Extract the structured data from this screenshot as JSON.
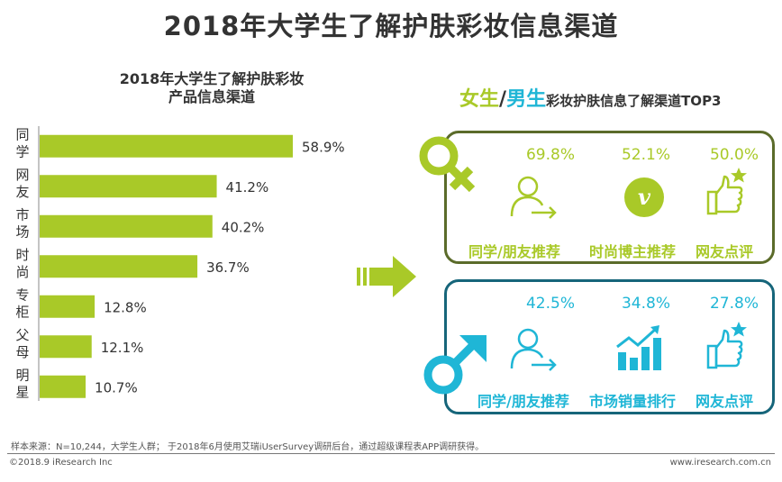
{
  "title": "2018年大学生了解护肤彩妆信息渠道",
  "colors": {
    "green": "#a9c928",
    "blue": "#1fb6d6",
    "female_border": "#5b6b2a",
    "male_border": "#16657a"
  },
  "chart_data": {
    "type": "bar",
    "orientation": "horizontal",
    "title": "2018年大学生了解护肤彩妆产品信息渠道",
    "title_lines": [
      "2018年大学生了解护肤彩妆",
      "产品信息渠道"
    ],
    "categories": [
      "同学",
      "网友",
      "市场",
      "时尚",
      "专柜",
      "父母",
      "明星"
    ],
    "values": [
      58.9,
      41.2,
      40.2,
      36.7,
      12.8,
      12.1,
      10.7
    ],
    "value_labels": [
      "58.9%",
      "41.2%",
      "40.2%",
      "36.7%",
      "12.8%",
      "12.1%",
      "10.7%"
    ],
    "unit": "%",
    "xlim": [
      0,
      60
    ],
    "xlabel": "",
    "ylabel": "",
    "grid": false
  },
  "panel_heading": {
    "female": "女生",
    "slash": "/",
    "male": "男生",
    "rest": "彩妆护肤信息了解渠道TOP3"
  },
  "female": {
    "items": [
      {
        "pct": "69.8%",
        "label": "同学/朋友推荐",
        "icon": "person-arrow-icon"
      },
      {
        "pct": "52.1%",
        "label": "时尚博主推荐",
        "icon": "vimeo-icon"
      },
      {
        "pct": "50.0%",
        "label": "网友点评",
        "icon": "thumbs-up-star-icon"
      }
    ]
  },
  "male": {
    "items": [
      {
        "pct": "42.5%",
        "label": "同学/朋友推荐",
        "icon": "person-arrow-icon"
      },
      {
        "pct": "34.8%",
        "label": "市场销量排行",
        "icon": "bar-trend-icon"
      },
      {
        "pct": "27.8%",
        "label": "网友点评",
        "icon": "thumbs-up-star-icon"
      }
    ]
  },
  "footer": {
    "note": "样本来源：N=10,244，大学生人群； 于2018年6月使用艾瑞iUserSurvey调研后台，通过超级课程表APP调研获得。",
    "copyright": "©2018.9 iResearch Inc",
    "site": "www.iresearch.com.cn"
  }
}
